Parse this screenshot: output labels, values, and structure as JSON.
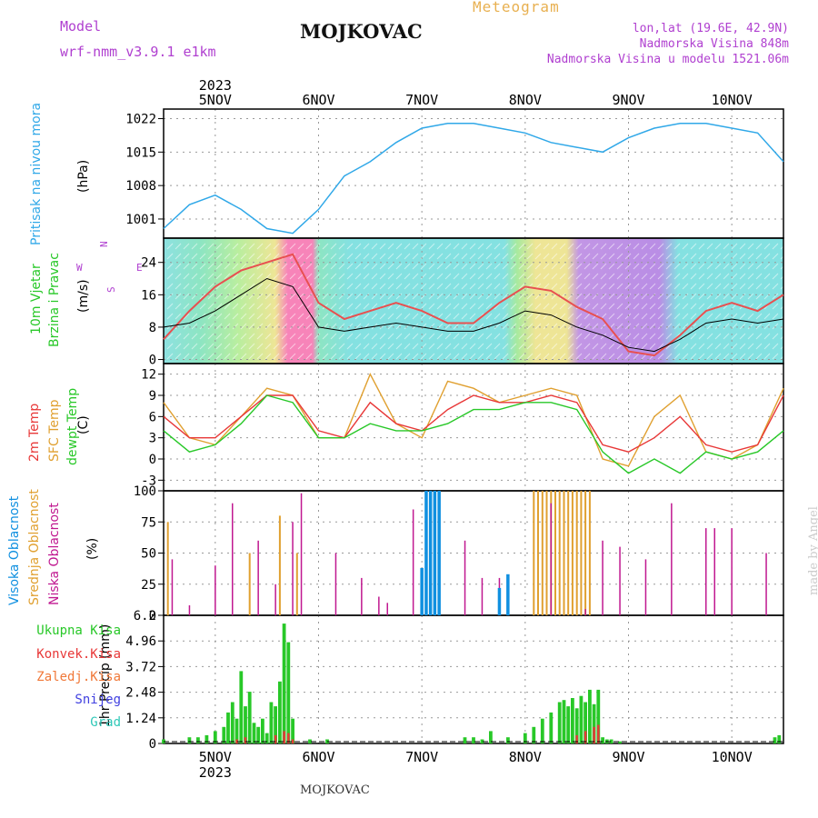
{
  "header": {
    "model_label": "Model",
    "model_name": "wrf-nmm_v3.9.1 e1km",
    "station": "MOJKOVAC",
    "kind": "Meteogram",
    "coords": "lon,lat (19.6E, 42.9N)",
    "elevation": "Nadmorska Visina 848m",
    "model_elevation": "Nadmorska Visina u modelu 1521.06m"
  },
  "footer": {
    "station": "MOJKOVAC",
    "credit": "made by Angel"
  },
  "colors": {
    "pressure": "#30a8e8",
    "wind_speed": "#000000",
    "gust": "#e85050",
    "temp2m": "#e83838",
    "sfc_temp": "#e0a030",
    "dewpt": "#28c828",
    "high_cloud": "#1090e0",
    "mid_cloud": "#e0a030",
    "low_cloud": "#c01890",
    "total_precip": "#28c828",
    "conv_precip": "#e83838"
  },
  "chart_data": [
    {
      "type": "line",
      "panel": "pressure",
      "ylabel": "Pritisak na nivou mora",
      "unit": "(hPa)",
      "yticks": [
        1001,
        1008,
        1015,
        1022
      ],
      "ylim": [
        997,
        1024
      ],
      "x_date_labels": [
        "5NOV",
        "6NOV",
        "7NOV",
        "8NOV",
        "9NOV",
        "10NOV"
      ],
      "year_label": "2023",
      "x_hours": [
        0,
        6,
        12,
        18,
        24,
        30,
        36,
        42,
        48,
        54,
        60,
        66,
        72,
        78,
        84,
        90,
        96,
        102,
        108,
        114,
        120,
        126,
        132,
        138,
        144
      ],
      "series": [
        {
          "values": [
            999,
            1004,
            1006,
            1003,
            999,
            998,
            1003,
            1010,
            1013,
            1017,
            1020,
            1021,
            1021,
            1020,
            1019,
            1017,
            1016,
            1015,
            1018,
            1020,
            1021,
            1021,
            1020,
            1019,
            1013
          ]
        }
      ]
    },
    {
      "type": "line",
      "panel": "wind",
      "ylabel": "10m Vjetar",
      "ylabel2": "Brzina i Pravac",
      "unit": "(m/s)",
      "yticks": [
        0,
        8,
        16,
        24
      ],
      "ylim": [
        -1,
        30
      ],
      "compass": {
        "n": "N",
        "s": "S",
        "w": "W",
        "e": "E"
      },
      "x_hours": [
        0,
        6,
        12,
        18,
        24,
        30,
        36,
        42,
        48,
        54,
        60,
        66,
        72,
        78,
        84,
        90,
        96,
        102,
        108,
        114,
        120,
        126,
        132,
        138,
        144
      ],
      "series": [
        {
          "name": "speed",
          "values": [
            8,
            9,
            12,
            16,
            20,
            18,
            8,
            7,
            8,
            9,
            8,
            7,
            7,
            9,
            12,
            11,
            8,
            6,
            3,
            2,
            5,
            9,
            10,
            9,
            10
          ]
        },
        {
          "name": "gust",
          "values": [
            5,
            12,
            18,
            22,
            24,
            26,
            14,
            10,
            12,
            14,
            12,
            9,
            9,
            14,
            18,
            17,
            13,
            10,
            2,
            1,
            6,
            12,
            14,
            12,
            16
          ]
        }
      ]
    },
    {
      "type": "line",
      "panel": "temperature",
      "ylabel": "2m Temp",
      "ylabel2": "SFC Temp",
      "ylabel3": "dewpt Temp",
      "unit": "(C)",
      "yticks": [
        -3,
        0,
        3,
        6,
        9,
        12
      ],
      "ylim": [
        -4.5,
        13.5
      ],
      "x_hours": [
        0,
        6,
        12,
        18,
        24,
        30,
        36,
        42,
        48,
        54,
        60,
        66,
        72,
        78,
        84,
        90,
        96,
        102,
        108,
        114,
        120,
        126,
        132,
        138,
        144
      ],
      "series": [
        {
          "name": "2m Temp",
          "values": [
            6,
            3,
            3,
            6,
            9,
            9,
            4,
            3,
            8,
            5,
            4,
            7,
            9,
            8,
            8,
            9,
            8,
            2,
            1,
            3,
            6,
            2,
            1,
            2,
            9
          ]
        },
        {
          "name": "SFC Temp",
          "values": [
            8,
            3,
            2,
            6,
            10,
            9,
            3,
            3,
            12,
            5,
            3,
            11,
            10,
            8,
            9,
            10,
            9,
            0,
            -1,
            6,
            9,
            1,
            0,
            2,
            10
          ]
        },
        {
          "name": "dewpt Temp",
          "values": [
            4,
            1,
            2,
            5,
            9,
            8,
            3,
            3,
            5,
            4,
            4,
            5,
            7,
            7,
            8,
            8,
            7,
            1,
            -2,
            0,
            -2,
            1,
            0,
            1,
            4
          ]
        }
      ]
    },
    {
      "type": "bar",
      "panel": "clouds",
      "ylabel": "Visoka Oblacnost",
      "ylabel2": "Srednja Oblacnost",
      "ylabel3": "Niska Oblacnost",
      "unit": "(%)",
      "yticks": [
        0,
        25,
        50,
        75,
        100
      ],
      "ylim": [
        0,
        100
      ],
      "series": [
        {
          "name": "low",
          "x": [
            2,
            6,
            12,
            16,
            22,
            26,
            30,
            32,
            40,
            46,
            50,
            52,
            58,
            62,
            70,
            74,
            78,
            90,
            98,
            102,
            106,
            112,
            118,
            126,
            128,
            132,
            140
          ],
          "values": [
            45,
            8,
            40,
            90,
            60,
            25,
            75,
            98,
            50,
            30,
            15,
            10,
            85,
            10,
            60,
            30,
            30,
            90,
            5,
            60,
            55,
            45,
            90,
            70,
            70,
            70,
            50
          ]
        },
        {
          "name": "mid",
          "x": [
            1,
            20,
            27,
            31,
            61,
            62,
            63,
            86,
            87,
            88,
            89,
            90,
            91,
            92,
            93,
            94,
            95,
            96,
            97,
            98,
            99
          ],
          "values": [
            75,
            50,
            80,
            50,
            100,
            100,
            100,
            100,
            100,
            100,
            100,
            100,
            100,
            100,
            100,
            100,
            100,
            100,
            100,
            100,
            100
          ]
        },
        {
          "name": "high",
          "x": [
            60,
            61,
            62,
            63,
            64,
            78,
            80
          ],
          "values": [
            38,
            100,
            100,
            100,
            100,
            22,
            33
          ]
        }
      ]
    },
    {
      "type": "bar",
      "panel": "precip",
      "ylabel": "1hr Precip (mm)",
      "legend": [
        "Ukupna Kisa",
        "Konvek.Kisa",
        "Zaledj.Kisa",
        "Snijeg",
        "Grad"
      ],
      "yticks": [
        "0",
        "1.24",
        "2.48",
        "3.72",
        "4.96",
        "6.2"
      ],
      "ylim": [
        0,
        6.2
      ],
      "series": [
        {
          "name": "Ukupna Kisa",
          "x": [
            0,
            6,
            8,
            10,
            12,
            14,
            15,
            16,
            17,
            18,
            19,
            20,
            21,
            22,
            23,
            24,
            25,
            26,
            27,
            28,
            29,
            30,
            34,
            38,
            70,
            72,
            74,
            76,
            80,
            84,
            86,
            88,
            90,
            92,
            93,
            94,
            95,
            96,
            97,
            98,
            99,
            100,
            101,
            102,
            103,
            104,
            106,
            142,
            143
          ],
          "values": [
            0.2,
            0.3,
            0.3,
            0.4,
            0.6,
            0.8,
            1.5,
            2.0,
            1.2,
            3.5,
            1.8,
            2.5,
            1.0,
            0.8,
            1.2,
            0.5,
            2.0,
            1.8,
            3.0,
            5.8,
            4.9,
            1.2,
            0.2,
            0.2,
            0.3,
            0.3,
            0.2,
            0.6,
            0.3,
            0.5,
            0.8,
            1.2,
            1.5,
            2.0,
            2.1,
            1.8,
            2.2,
            1.7,
            2.3,
            2.0,
            2.6,
            1.9,
            2.6,
            0.3,
            0.2,
            0.2,
            0.1,
            0.3,
            0.4
          ]
        },
        {
          "name": "Konvek.Kisa",
          "x": [
            17,
            19,
            26,
            28,
            29,
            30,
            96,
            98,
            100,
            101
          ],
          "values": [
            0.2,
            0.3,
            0.4,
            0.6,
            0.5,
            0.2,
            0.4,
            0.6,
            0.8,
            0.9
          ]
        }
      ]
    }
  ]
}
